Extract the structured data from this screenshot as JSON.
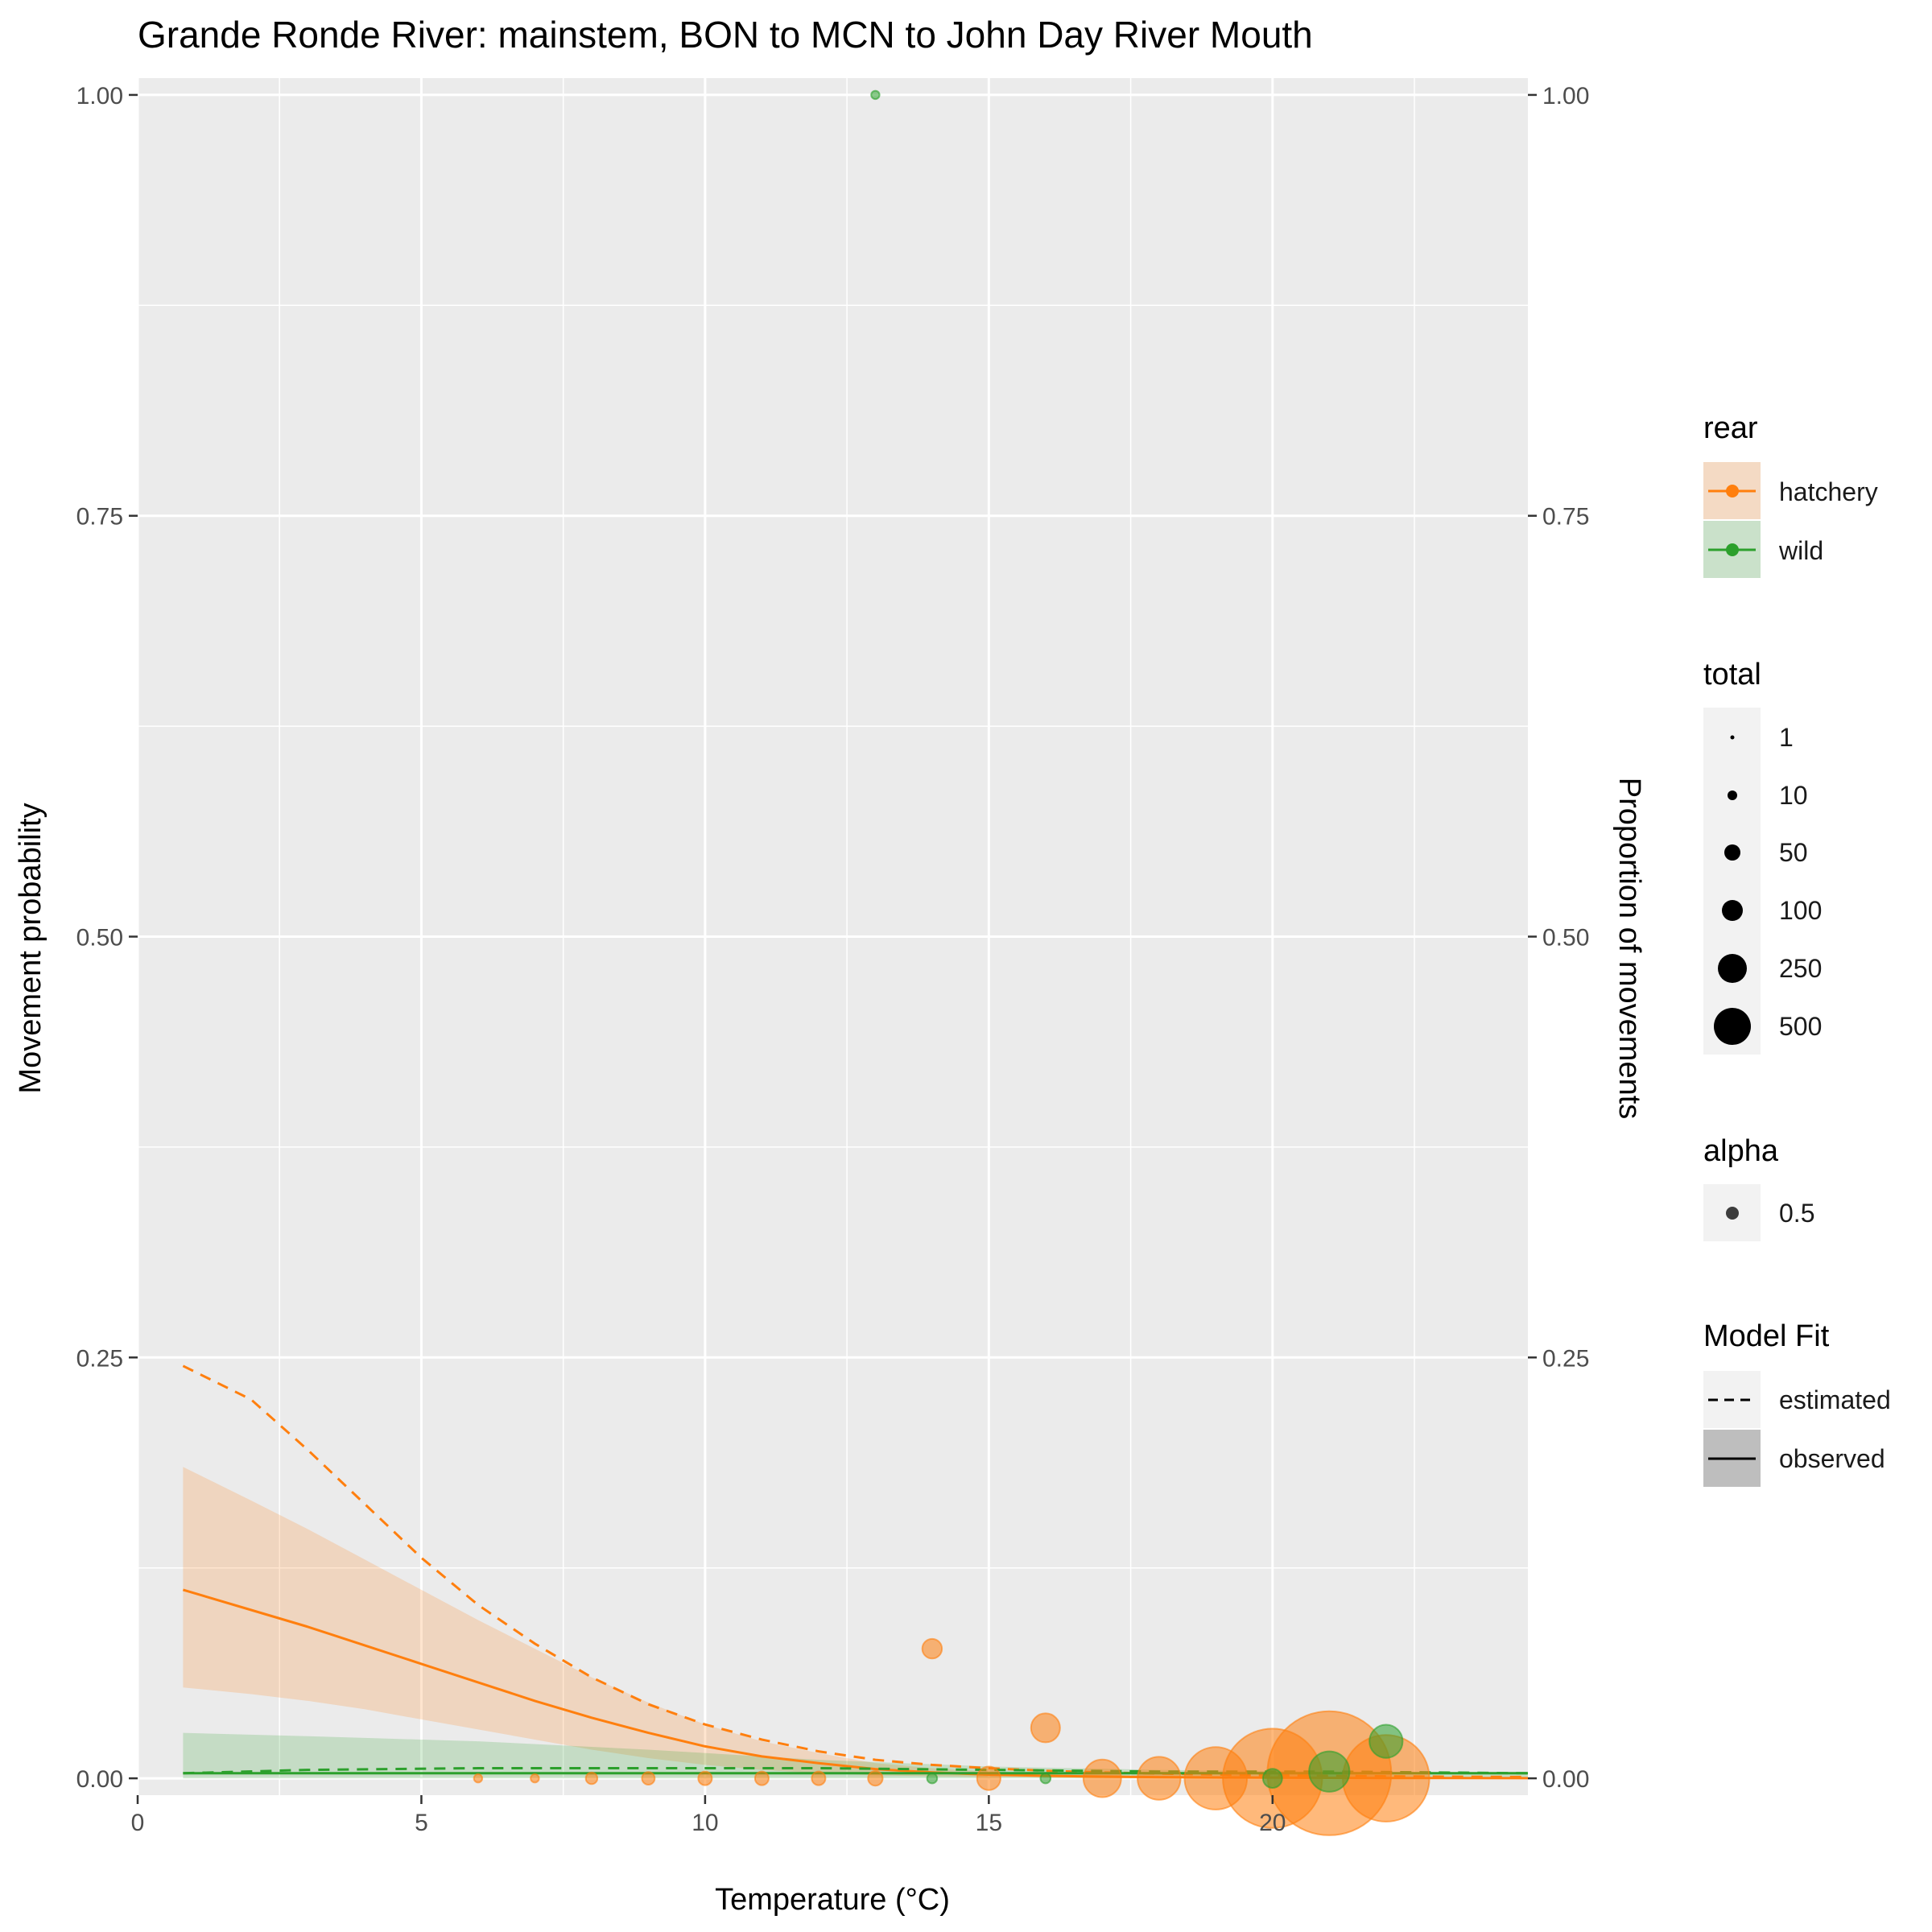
{
  "chart_data": {
    "type": "scatter",
    "title": "Grande Ronde River: mainstem, BON to MCN to John Day River Mouth",
    "xlabel": "Temperature (°C)",
    "ylabel": "Movement probability",
    "ylabel_right": "Proportion of movements",
    "xlim": [
      0,
      24.5
    ],
    "ylim": [
      -0.01,
      1.01
    ],
    "x_ticks": [
      0,
      5,
      10,
      15,
      20
    ],
    "x_tick_labels": [
      "0",
      "5",
      "10",
      "15",
      "20"
    ],
    "y_ticks": [
      0,
      0.25,
      0.5,
      0.75,
      1
    ],
    "y_tick_labels": [
      "0.00",
      "0.25",
      "0.50",
      "0.75",
      "1.00"
    ],
    "grid": true,
    "legend_position": "right",
    "colors": {
      "hatchery": "#FF7F0E",
      "wild": "#2CA02C",
      "panel": "#EBEBEB",
      "grid": "#FFFFFF"
    },
    "legend": {
      "rear": {
        "title": "rear",
        "items": [
          "hatchery",
          "wild"
        ]
      },
      "total": {
        "title": "total",
        "items": [
          "1",
          "10",
          "50",
          "100",
          "250",
          "500"
        ],
        "values": [
          1,
          10,
          50,
          100,
          250,
          500
        ]
      },
      "alpha": {
        "title": "alpha",
        "items": [
          "0.5"
        ]
      },
      "model_fit": {
        "title": "Model Fit",
        "items": [
          "estimated",
          "observed"
        ]
      }
    },
    "series": [
      {
        "name": "hatchery",
        "observed_fit": {
          "x": [
            0.8,
            2,
            3,
            4,
            5,
            6,
            7,
            8,
            9,
            10,
            11,
            12,
            13,
            14,
            15,
            16,
            17,
            18,
            19,
            20,
            21,
            22,
            23,
            24.5
          ],
          "y": [
            0.112,
            0.1,
            0.09,
            0.079,
            0.068,
            0.057,
            0.046,
            0.036,
            0.027,
            0.019,
            0.013,
            0.009,
            0.0055,
            0.0035,
            0.0022,
            0.0015,
            0.001,
            0.0007,
            0.0005,
            0.0004,
            0.0003,
            0.0002,
            0.0002,
            0.0001
          ],
          "ci_low": [
            0.054,
            0.05,
            0.046,
            0.041,
            0.035,
            0.029,
            0.023,
            0.017,
            0.012,
            0.008,
            0.005,
            0.003,
            0.0018,
            0.0012,
            0.0008,
            0.0005,
            0.0003,
            0.0002,
            0.0001,
            0.0001,
            0.0001,
            0.0,
            0.0,
            0.0
          ],
          "ci_high": [
            0.185,
            0.165,
            0.148,
            0.13,
            0.112,
            0.094,
            0.077,
            0.06,
            0.045,
            0.032,
            0.022,
            0.015,
            0.009,
            0.006,
            0.004,
            0.0028,
            0.002,
            0.0015,
            0.0012,
            0.001,
            0.0008,
            0.0006,
            0.0005,
            0.0004
          ]
        },
        "estimated_fit": {
          "x": [
            0.8,
            2,
            3,
            4,
            5,
            6,
            7,
            8,
            9,
            10,
            11,
            12,
            13,
            14,
            15,
            16,
            17,
            18,
            19,
            20,
            21,
            22,
            23,
            24.5
          ],
          "y": [
            0.245,
            0.225,
            0.195,
            0.163,
            0.131,
            0.103,
            0.08,
            0.06,
            0.044,
            0.032,
            0.023,
            0.016,
            0.011,
            0.008,
            0.006,
            0.0045,
            0.0035,
            0.0028,
            0.0022,
            0.0018,
            0.0015,
            0.0012,
            0.001,
            0.0008
          ]
        },
        "points": [
          {
            "x": 6,
            "y": 0,
            "total": 1
          },
          {
            "x": 7,
            "y": 0,
            "total": 1
          },
          {
            "x": 8,
            "y": 0,
            "total": 3
          },
          {
            "x": 9,
            "y": 0,
            "total": 4
          },
          {
            "x": 10,
            "y": 0,
            "total": 5
          },
          {
            "x": 11,
            "y": 0,
            "total": 5
          },
          {
            "x": 12,
            "y": 0,
            "total": 5
          },
          {
            "x": 13,
            "y": 0,
            "total": 6
          },
          {
            "x": 14,
            "y": 0.077,
            "total": 13
          },
          {
            "x": 15,
            "y": 0,
            "total": 20
          },
          {
            "x": 16,
            "y": 0.03,
            "total": 33
          },
          {
            "x": 17,
            "y": 0,
            "total": 60
          },
          {
            "x": 18,
            "y": 0,
            "total": 80
          },
          {
            "x": 19,
            "y": 0,
            "total": 180
          },
          {
            "x": 20,
            "y": 0,
            "total": 480
          },
          {
            "x": 21,
            "y": 0.003,
            "total": 760
          },
          {
            "x": 22,
            "y": 0,
            "total": 360
          }
        ]
      },
      {
        "name": "wild",
        "observed_fit": {
          "x": [
            0.8,
            3,
            6,
            9,
            12,
            15,
            18,
            21,
            24.5
          ],
          "y": [
            0.003,
            0.003,
            0.003,
            0.003,
            0.003,
            0.003,
            0.003,
            0.003,
            0.003
          ],
          "ci_low": [
            0.0,
            0.0,
            0.0,
            0.0,
            0.0,
            0.0,
            0.0,
            0.0,
            0.0
          ],
          "ci_high": [
            0.027,
            0.025,
            0.022,
            0.017,
            0.011,
            0.007,
            0.005,
            0.004,
            0.003
          ]
        },
        "estimated_fit": {
          "x": [
            0.8,
            3,
            6,
            9,
            12,
            15,
            18,
            21,
            24.5
          ],
          "y": [
            0.003,
            0.005,
            0.006,
            0.006,
            0.006,
            0.005,
            0.004,
            0.004,
            0.003
          ]
        },
        "points": [
          {
            "x": 13,
            "y": 1.0,
            "total": 1
          },
          {
            "x": 14,
            "y": 0,
            "total": 2
          },
          {
            "x": 16,
            "y": 0,
            "total": 2
          },
          {
            "x": 20,
            "y": 0,
            "total": 12
          },
          {
            "x": 21,
            "y": 0.004,
            "total": 70
          },
          {
            "x": 22,
            "y": 0.022,
            "total": 45
          }
        ]
      }
    ]
  }
}
